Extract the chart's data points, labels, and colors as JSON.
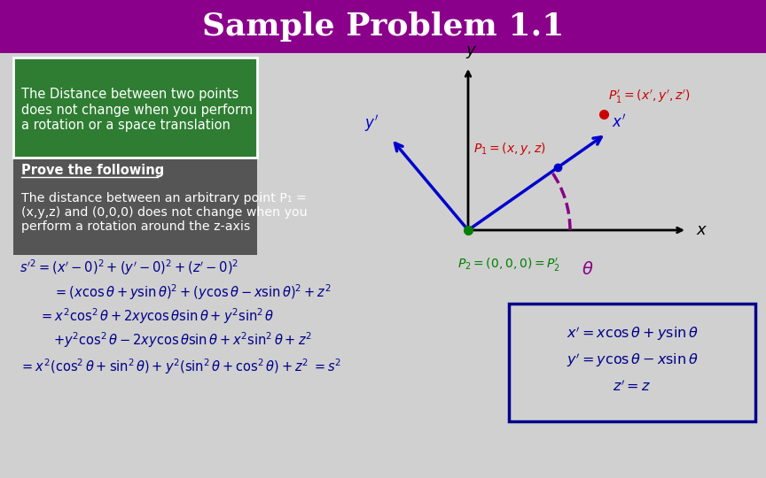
{
  "title": "Sample Problem 1.1",
  "title_color": "white",
  "title_bg_color": "#8B008B",
  "bg_color": "#D0D0D0",
  "green_box_text": "The Distance between two points\ndoes not change when you perform\na rotation or a space translation",
  "green_box_color": "#2E7D32",
  "gray_box_title": "Prove the following",
  "gray_box_body": "The distance between an arbitrary point P₁ =\n(x,y,z) and (0,0,0) does not change when you\nperform a rotation around the z-axis",
  "gray_box_color": "#555555",
  "blue_color": "#0000CC",
  "dark_blue": "#00008B",
  "red_color": "#CC0000",
  "green_color": "#008000",
  "purple_color": "#880088"
}
